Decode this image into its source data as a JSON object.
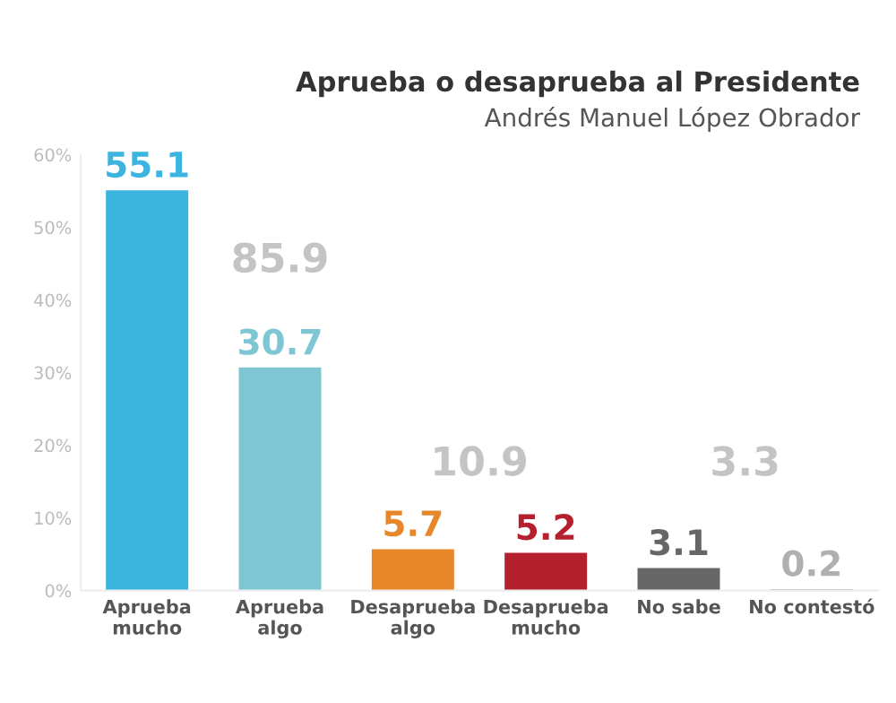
{
  "chart_data": {
    "type": "bar",
    "title": "Aprueba o desaprueba al Presidente",
    "subtitle": "Andrés Manuel López Obrador",
    "categories": [
      "Aprueba\nmucho",
      "Aprueba\nalgo",
      "Desaprueba\nalgo",
      "Desaprueba\nmucho",
      "No sabe",
      "No contestó"
    ],
    "values": [
      55.1,
      30.7,
      5.7,
      5.2,
      3.1,
      0.2
    ],
    "colors": [
      "#3bb5e0",
      "#7ec6d4",
      "#e8872a",
      "#b5202e",
      "#666666",
      "#b0b0b0"
    ],
    "data_labels": true,
    "annotations": [
      "85.9",
      "10.9",
      "3.3"
    ],
    "ylim": [
      0,
      60
    ],
    "yticks": [
      {
        "value": 0,
        "label": "0%"
      },
      {
        "value": 10,
        "label": "10%"
      },
      {
        "value": 20,
        "label": "20%"
      },
      {
        "value": 30,
        "label": "30%"
      },
      {
        "value": 40,
        "label": "40%"
      },
      {
        "value": 50,
        "label": "50%"
      },
      {
        "value": 60,
        "label": "60%"
      }
    ],
    "grid": false,
    "legend": false
  }
}
